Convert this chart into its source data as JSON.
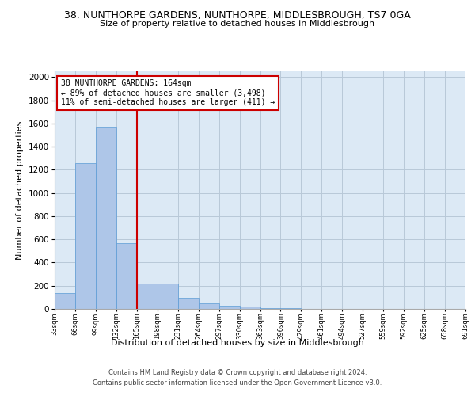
{
  "title": "38, NUNTHORPE GARDENS, NUNTHORPE, MIDDLESBROUGH, TS7 0GA",
  "subtitle": "Size of property relative to detached houses in Middlesbrough",
  "xlabel": "Distribution of detached houses by size in Middlesbrough",
  "ylabel": "Number of detached properties",
  "footer_line1": "Contains HM Land Registry data © Crown copyright and database right 2024.",
  "footer_line2": "Contains public sector information licensed under the Open Government Licence v3.0.",
  "annotation_line1": "38 NUNTHORPE GARDENS: 164sqm",
  "annotation_line2": "← 89% of detached houses are smaller (3,498)",
  "annotation_line3": "11% of semi-detached houses are larger (411) →",
  "bin_edges": [
    33,
    66,
    99,
    132,
    165,
    198,
    231,
    264,
    297,
    330,
    363,
    396,
    429,
    462,
    495,
    528,
    561,
    594,
    627,
    660,
    693
  ],
  "bin_labels": [
    "33sqm",
    "66sqm",
    "99sqm",
    "132sqm",
    "165sqm",
    "198sqm",
    "231sqm",
    "264sqm",
    "297sqm",
    "330sqm",
    "363sqm",
    "396sqm",
    "429sqm",
    "461sqm",
    "494sqm",
    "527sqm",
    "559sqm",
    "592sqm",
    "625sqm",
    "658sqm",
    "691sqm"
  ],
  "counts": [
    140,
    1260,
    1570,
    570,
    220,
    220,
    95,
    50,
    30,
    20,
    10,
    5,
    2,
    2,
    1,
    0,
    0,
    0,
    0,
    0
  ],
  "bar_color": "#aec6e8",
  "bar_edge_color": "#5b9bd5",
  "vline_color": "#cc0000",
  "annotation_box_color": "#cc0000",
  "plot_bg_color": "#dce9f5",
  "background_color": "#ffffff",
  "grid_color": "#b8c8d8",
  "ylim": [
    0,
    2050
  ],
  "yticks": [
    0,
    200,
    400,
    600,
    800,
    1000,
    1200,
    1400,
    1600,
    1800,
    2000
  ]
}
